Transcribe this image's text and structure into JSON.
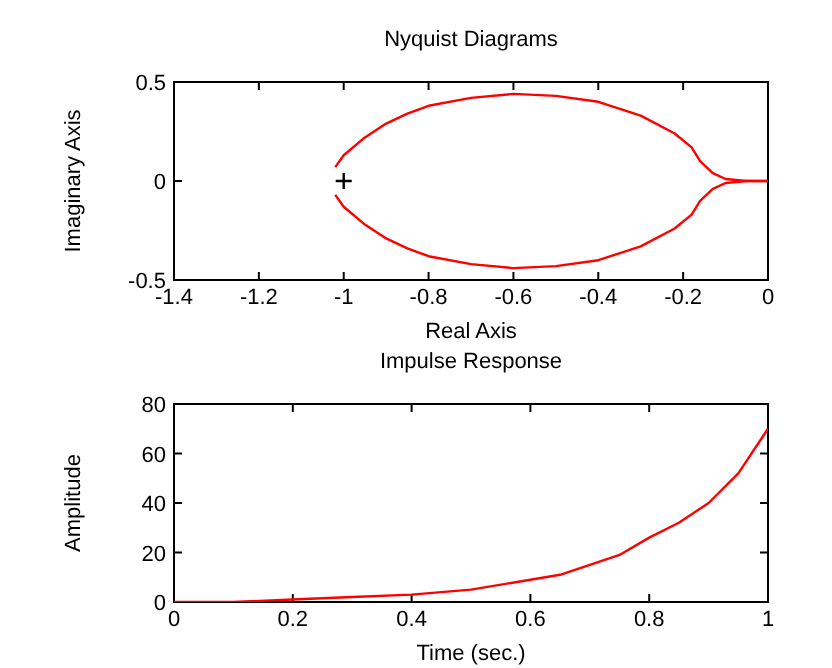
{
  "chart_data": [
    {
      "type": "line",
      "title": "Nyquist Diagrams",
      "xlabel": "Real Axis",
      "ylabel": "Imaginary Axis",
      "xlim": [
        -1.4,
        0
      ],
      "ylim": [
        -0.5,
        0.5
      ],
      "xticks": [
        -1.4,
        -1.2,
        -1,
        -0.8,
        -0.6,
        -0.4,
        -0.2,
        0
      ],
      "yticks": [
        -0.5,
        0,
        0.5
      ],
      "grid": false,
      "line_style": "solid",
      "series": [
        {
          "color": "#ff0000",
          "x": [
            0,
            -0.05,
            -0.1,
            -0.13,
            -0.16,
            -0.18,
            -0.22,
            -0.3,
            -0.4,
            -0.5,
            -0.6,
            -0.7,
            -0.8,
            -0.85,
            -0.9,
            -0.95,
            -1,
            -1.02
          ],
          "values": [
            0,
            0,
            0.01,
            0.04,
            0.1,
            0.17,
            0.24,
            0.33,
            0.4,
            0.43,
            0.44,
            0.42,
            0.38,
            0.34,
            0.29,
            0.22,
            0.13,
            0.07
          ]
        },
        {
          "color": "#ff0000",
          "x": [
            0,
            -0.05,
            -0.1,
            -0.13,
            -0.16,
            -0.18,
            -0.22,
            -0.3,
            -0.4,
            -0.5,
            -0.6,
            -0.7,
            -0.8,
            -0.85,
            -0.9,
            -0.95,
            -1,
            -1.02
          ],
          "values": [
            0,
            0,
            -0.01,
            -0.04,
            -0.1,
            -0.17,
            -0.24,
            -0.33,
            -0.4,
            -0.43,
            -0.44,
            -0.42,
            -0.38,
            -0.34,
            -0.29,
            -0.22,
            -0.13,
            -0.07
          ]
        },
        {
          "type": "scatter",
          "color": "#000000",
          "marker": "cross",
          "x": [
            -1
          ],
          "values": [
            0
          ]
        }
      ]
    },
    {
      "type": "line",
      "title": "Impulse Response",
      "xlabel": "Time (sec.)",
      "ylabel": "Amplitude",
      "xlim": [
        0,
        1
      ],
      "ylim": [
        0,
        80
      ],
      "xticks": [
        0,
        0.2,
        0.4,
        0.6,
        0.8,
        1
      ],
      "yticks": [
        0,
        20,
        40,
        60,
        80
      ],
      "grid": false,
      "line_style": "solid",
      "series": [
        {
          "color": "#ff0000",
          "x": [
            0,
            0.1,
            0.2,
            0.3,
            0.4,
            0.5,
            0.6,
            0.65,
            0.7,
            0.75,
            0.8,
            0.85,
            0.9,
            0.95,
            1
          ],
          "values": [
            0,
            0,
            1,
            2,
            3,
            5,
            9,
            11,
            15,
            19,
            26,
            32,
            40,
            52,
            70
          ]
        }
      ]
    }
  ]
}
